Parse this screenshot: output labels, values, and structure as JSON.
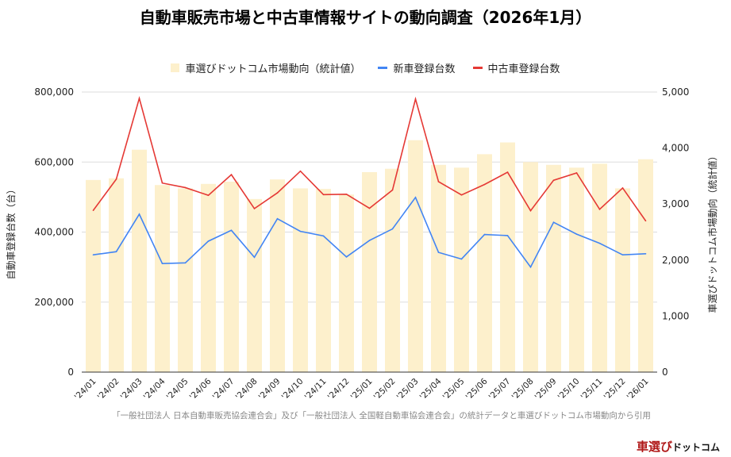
{
  "chart_data": {
    "type": "bar+line",
    "title": "自動車販売市場と中古車情報サイトの動向調査（2026年1月）",
    "categories": [
      "'24/01",
      "'24/02",
      "'24/03",
      "'24/04",
      "'24/05",
      "'24/06",
      "'24/07",
      "'24/08",
      "'24/09",
      "'24/10",
      "'24/11",
      "'24/12",
      "'25/01",
      "'25/02",
      "'25/03",
      "'25/04",
      "'25/05",
      "'25/06",
      "'25/07",
      "'25/08",
      "'25/09",
      "'25/10",
      "'25/11",
      "'25/12",
      "'26/01"
    ],
    "series": [
      {
        "name": "車選びドットコム市場動向（統計値）",
        "type": "bar",
        "axis": "right",
        "color": "#fdf0cc",
        "values": [
          3430,
          3460,
          3970,
          3340,
          3280,
          3360,
          3400,
          3090,
          3440,
          3280,
          3270,
          3170,
          3570,
          3630,
          4140,
          3700,
          3650,
          3890,
          4100,
          3750,
          3700,
          3650,
          3720,
          3280,
          3800
        ]
      },
      {
        "name": "新車登録台数",
        "type": "line",
        "axis": "left",
        "color": "#4285f4",
        "values": [
          335000,
          344000,
          451000,
          310000,
          312000,
          374000,
          405000,
          328000,
          438000,
          402000,
          389000,
          329000,
          376000,
          409000,
          499000,
          342000,
          323000,
          393000,
          390000,
          300000,
          428000,
          394000,
          368000,
          335000,
          338000
        ]
      },
      {
        "name": "中古車登録台数",
        "type": "line",
        "axis": "left",
        "color": "#e53935",
        "values": [
          462000,
          551000,
          782000,
          540000,
          527000,
          505000,
          564000,
          467000,
          512000,
          574000,
          507000,
          508000,
          468000,
          520000,
          780000,
          544000,
          506000,
          536000,
          571000,
          461000,
          548000,
          569000,
          465000,
          526000,
          432000
        ]
      }
    ],
    "ylabel": "自動車登録台数（台）",
    "ylim": [
      0,
      800000
    ],
    "yticks": [
      "0",
      "200,000",
      "400,000",
      "600,000",
      "800,000"
    ],
    "y2label": "車選びドットコム市場動向（統計値）",
    "y2lim": [
      0,
      5000
    ],
    "y2ticks": [
      "0",
      "1,000",
      "2,000",
      "3,000",
      "4,000",
      "5,000"
    ],
    "legend": "top",
    "grid": true
  },
  "source_note": "「一般社団法人 日本自動車販売協会連合会」及び「一般社団法人 全国軽自動車協会連合会」の統計データと車選びドットコム市場動向から引用",
  "logo": {
    "main": "車選び",
    "sub": "ドットコム"
  }
}
